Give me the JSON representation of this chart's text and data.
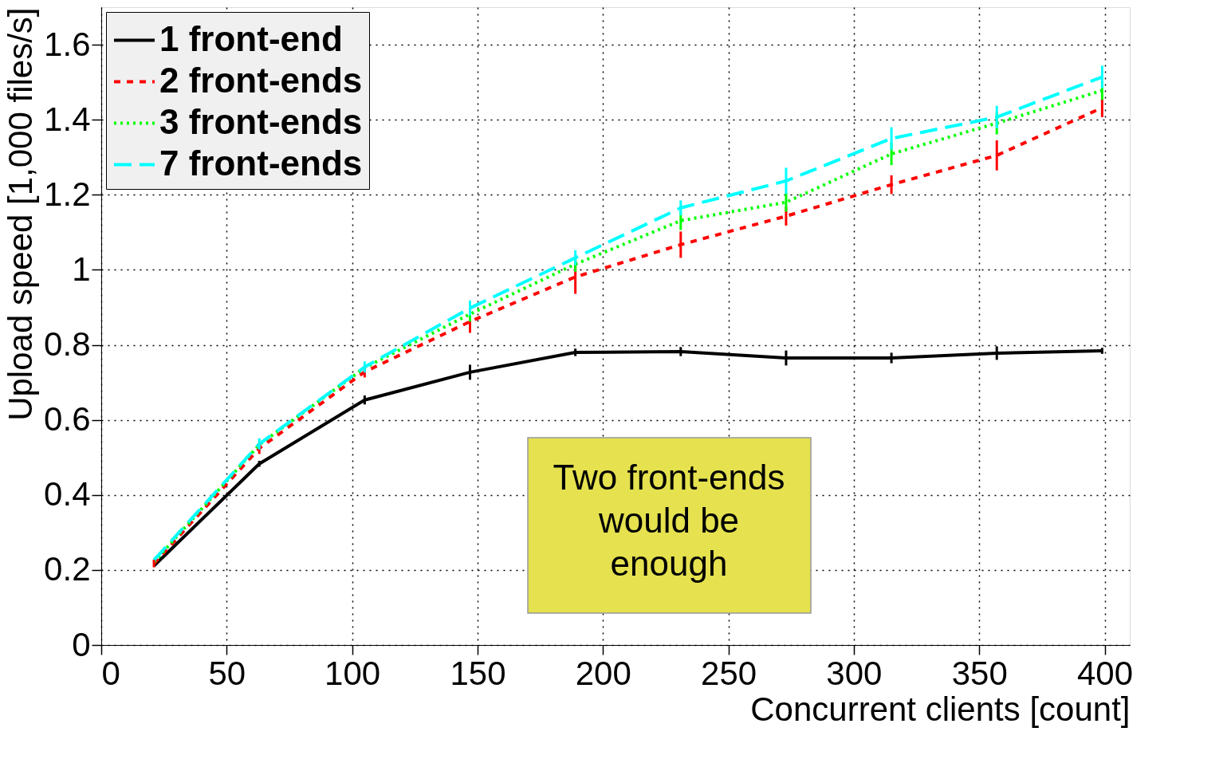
{
  "chart_data": {
    "type": "line",
    "xlabel": "Concurrent clients [count]",
    "ylabel": "Upload speed [1,000 files/s]",
    "x": [
      21,
      63,
      105,
      147,
      189,
      231,
      273,
      315,
      357,
      399
    ],
    "xlim": [
      0,
      410
    ],
    "xticks": [
      0,
      50,
      100,
      150,
      200,
      250,
      300,
      350,
      400
    ],
    "ylim": [
      0,
      1.7
    ],
    "yticks": [
      0,
      0.2,
      0.4,
      0.6,
      0.8,
      1,
      1.2,
      1.4,
      1.6
    ],
    "grid": true,
    "legend": "top left",
    "marker": "none",
    "annotations": [
      "Two front-ends\nwould be\nenough"
    ],
    "series": [
      {
        "name": "1 front-end",
        "color": "#000000",
        "line_style": "solid",
        "values": [
          0.211,
          0.483,
          0.653,
          0.727,
          0.78,
          0.782,
          0.765,
          0.765,
          0.778,
          0.784
        ],
        "errors": [
          null,
          0.008,
          0.012,
          0.02,
          0.01,
          0.012,
          0.02,
          0.014,
          0.018,
          0.008
        ]
      },
      {
        "name": "2 front-ends",
        "color": "#ff0000",
        "line_style": "dashed",
        "values": [
          0.217,
          0.524,
          0.728,
          0.862,
          0.981,
          1.067,
          1.143,
          1.227,
          1.305,
          1.432
        ],
        "errors": [
          0.01,
          0.015,
          0.015,
          0.03,
          0.045,
          0.035,
          0.025,
          0.025,
          0.04,
          0.025
        ]
      },
      {
        "name": "3 front-ends",
        "color": "#00ff00",
        "line_style": "dotted",
        "values": [
          0.221,
          0.534,
          0.739,
          0.882,
          1.015,
          1.131,
          1.18,
          1.309,
          1.391,
          1.478
        ],
        "errors": [
          null,
          null,
          null,
          0.02,
          0.02,
          0.025,
          0.025,
          0.03,
          0.03,
          0.025
        ]
      },
      {
        "name": "7 front-ends",
        "color": "#00ffff",
        "line_style": "longdash",
        "values": [
          0.226,
          0.536,
          0.741,
          0.898,
          1.032,
          1.165,
          1.237,
          1.35,
          1.407,
          1.514
        ],
        "errors": [
          null,
          0.015,
          0.015,
          0.02,
          0.02,
          0.02,
          0.035,
          0.03,
          0.03,
          0.03
        ]
      }
    ]
  }
}
